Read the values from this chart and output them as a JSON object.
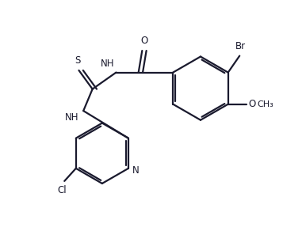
{
  "bg_color": "#ffffff",
  "line_color": "#1a1a2e",
  "line_width": 1.6,
  "font_size": 8.5,
  "figsize": [
    3.57,
    2.92
  ],
  "dpi": 100,
  "xlim": [
    0,
    9
  ],
  "ylim": [
    0,
    7.5
  ]
}
